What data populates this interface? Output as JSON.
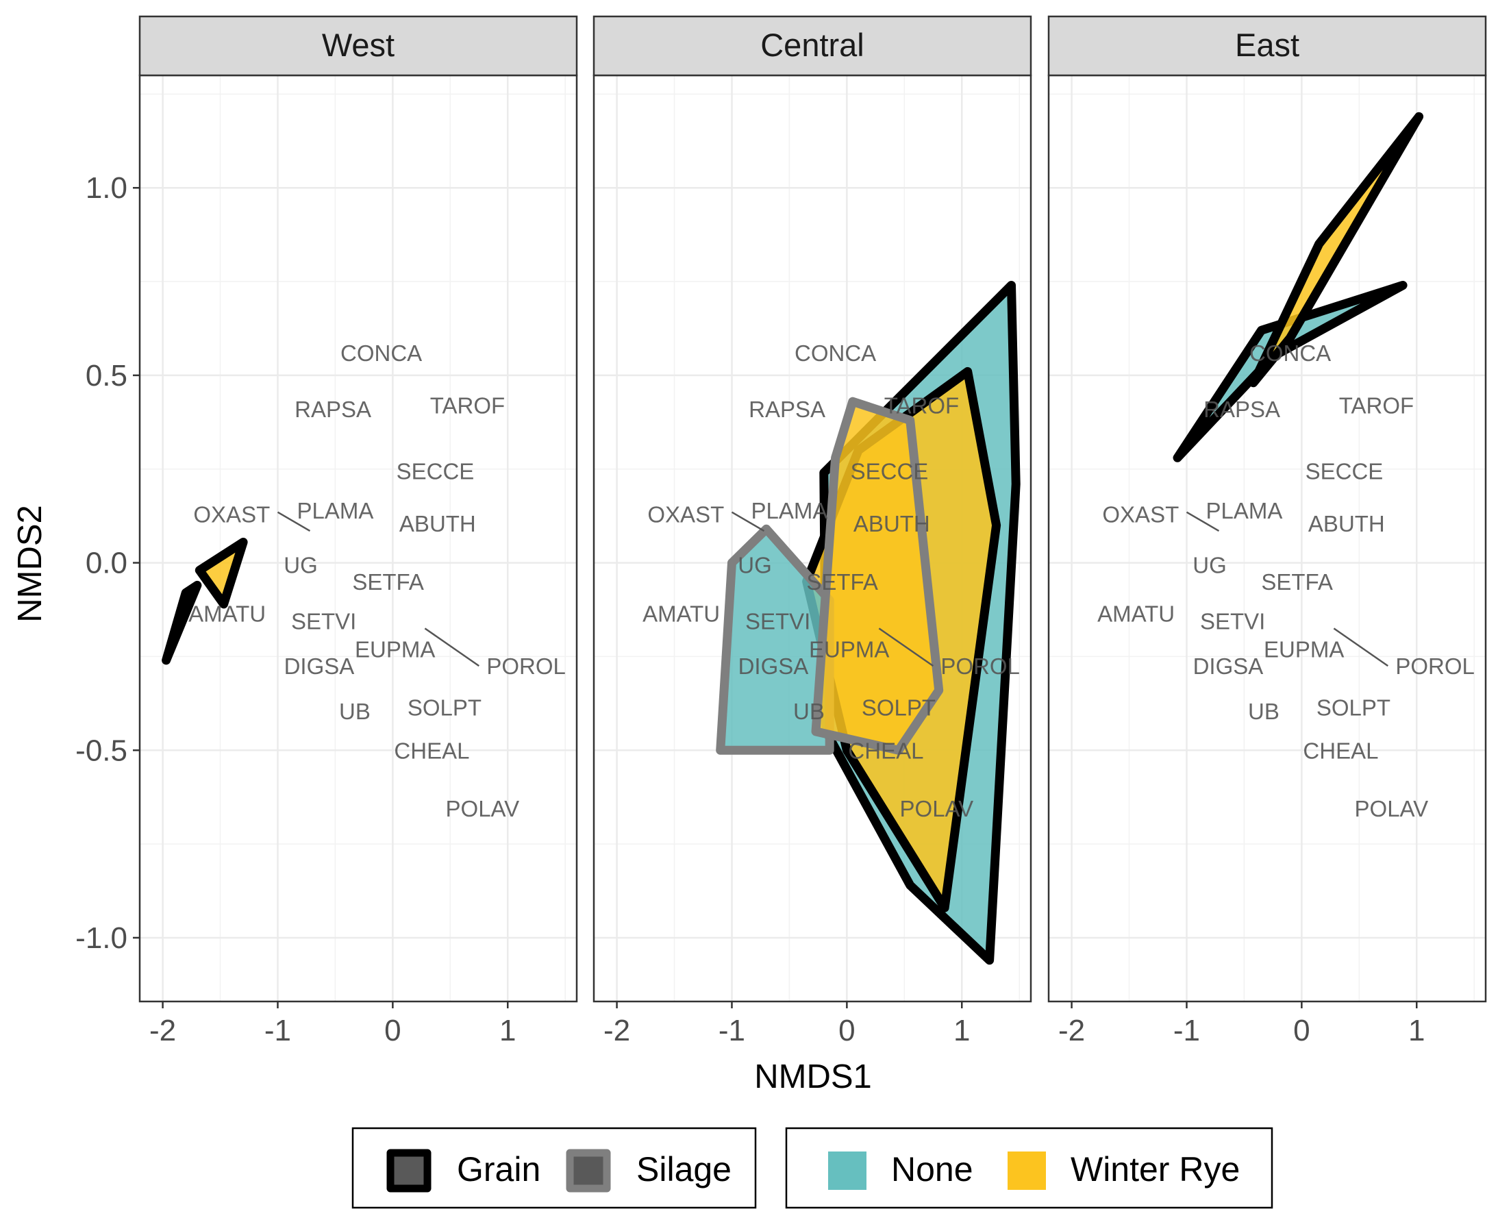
{
  "chart_data": {
    "type": "scatter",
    "subtype": "NMDS ordination with grouped hulls (faceted)",
    "xlabel": "NMDS1",
    "ylabel": "NMDS2",
    "xlim": [
      -2.2,
      1.6
    ],
    "ylim": [
      -1.17,
      1.3
    ],
    "x_ticks": [
      -2,
      -1,
      0,
      1
    ],
    "x_tick_labels": [
      "-2",
      "-1",
      "0",
      "1"
    ],
    "y_ticks": [
      1.0,
      0.5,
      0.0,
      -0.5,
      -1.0
    ],
    "y_tick_labels": [
      "1.0",
      "0.5",
      "0.0",
      "-0.5",
      "-1.0"
    ],
    "grid": true,
    "facets": [
      "West",
      "Central",
      "East"
    ],
    "legend": {
      "position": "bottom",
      "outline_items": [
        {
          "label": "Grain",
          "color": "#000000"
        },
        {
          "label": "Silage",
          "color": "#7f7f7f"
        }
      ],
      "fill_items": [
        {
          "label": "None",
          "color": "#66bfbf"
        },
        {
          "label": "Winter Rye",
          "color": "#fcc41f"
        }
      ]
    },
    "species": [
      {
        "label": "CONCA",
        "x": -0.1,
        "y": 0.56
      },
      {
        "label": "RAPSA",
        "x": -0.52,
        "y": 0.41
      },
      {
        "label": "TAROF",
        "x": 0.65,
        "y": 0.42
      },
      {
        "label": "SECCE",
        "x": 0.37,
        "y": 0.245
      },
      {
        "label": "OXAST",
        "x": -1.4,
        "y": 0.13
      },
      {
        "label": "PLAMA",
        "x": -0.5,
        "y": 0.14
      },
      {
        "label": "ABUTH",
        "x": 0.39,
        "y": 0.105
      },
      {
        "label": "UG",
        "x": -0.8,
        "y": -0.005
      },
      {
        "label": "SETFA",
        "x": -0.04,
        "y": -0.05
      },
      {
        "label": "AMATU",
        "x": -1.44,
        "y": -0.135
      },
      {
        "label": "SETVI",
        "x": -0.6,
        "y": -0.155
      },
      {
        "label": "EUPMA",
        "x": 0.02,
        "y": -0.23
      },
      {
        "label": "POROL",
        "x": 1.16,
        "y": -0.275
      },
      {
        "label": "DIGSA",
        "x": -0.64,
        "y": -0.275
      },
      {
        "label": "UB",
        "x": -0.33,
        "y": -0.395
      },
      {
        "label": "SOLPT",
        "x": 0.45,
        "y": -0.385
      },
      {
        "label": "CHEAL",
        "x": 0.34,
        "y": -0.5
      },
      {
        "label": "POLAV",
        "x": 0.78,
        "y": -0.655
      }
    ],
    "species_segments": [
      {
        "from": [
          -1.0,
          0.135
        ],
        "to": [
          -0.72,
          0.085
        ]
      },
      {
        "from": [
          0.28,
          -0.175
        ],
        "to": [
          0.75,
          -0.275
        ]
      }
    ],
    "hulls": {
      "West": [
        {
          "system": "Grain",
          "cover": "None",
          "points": [
            [
              -1.97,
              -0.26
            ],
            [
              -1.8,
              -0.08
            ],
            [
              -1.7,
              -0.06
            ]
          ]
        },
        {
          "system": "Grain",
          "cover": "Winter Rye",
          "points": [
            [
              -1.68,
              -0.02
            ],
            [
              -1.3,
              0.055
            ],
            [
              -1.47,
              -0.11
            ]
          ]
        }
      ],
      "Central": [
        {
          "system": "Grain",
          "cover": "None",
          "points": [
            [
              -0.2,
              0.24
            ],
            [
              1.43,
              0.74
            ],
            [
              1.47,
              0.21
            ],
            [
              1.24,
              -1.06
            ],
            [
              0.55,
              -0.86
            ],
            [
              -0.18,
              -0.45
            ]
          ]
        },
        {
          "system": "Grain",
          "cover": "Winter Rye",
          "points": [
            [
              -0.35,
              -0.05
            ],
            [
              0.1,
              0.3
            ],
            [
              1.05,
              0.51
            ],
            [
              1.3,
              0.1
            ],
            [
              0.85,
              -0.92
            ],
            [
              0.0,
              -0.5
            ]
          ]
        },
        {
          "system": "Silage",
          "cover": "None",
          "points": [
            [
              -1.1,
              -0.5
            ],
            [
              -0.15,
              -0.5
            ],
            [
              -0.15,
              -0.1
            ],
            [
              -0.7,
              0.09
            ],
            [
              -1.0,
              0.0
            ]
          ]
        },
        {
          "system": "Silage",
          "cover": "Winter Rye",
          "points": [
            [
              0.05,
              0.43
            ],
            [
              0.55,
              0.38
            ],
            [
              0.8,
              -0.34
            ],
            [
              0.45,
              -0.5
            ],
            [
              -0.27,
              -0.45
            ],
            [
              -0.1,
              0.28
            ]
          ]
        }
      ],
      "East": [
        {
          "system": "Grain",
          "cover": "None",
          "points": [
            [
              -1.08,
              0.28
            ],
            [
              -0.35,
              0.62
            ],
            [
              0.88,
              0.74
            ],
            [
              -0.25,
              0.55
            ]
          ]
        },
        {
          "system": "Grain",
          "cover": "Winter Rye",
          "points": [
            [
              -0.42,
              0.48
            ],
            [
              0.15,
              0.85
            ],
            [
              1.02,
              1.19
            ],
            [
              -0.1,
              0.6
            ]
          ]
        }
      ]
    }
  }
}
